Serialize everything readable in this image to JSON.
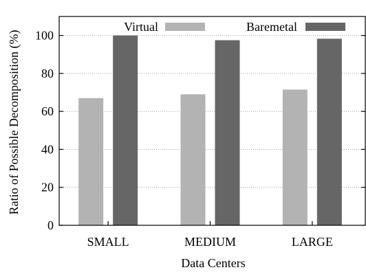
{
  "chart_data": {
    "type": "bar",
    "title": "",
    "xlabel": "Data Centers",
    "ylabel": "Ratio of Possible Decomposition (%)",
    "categories": [
      "SMALL",
      "MEDIUM",
      "LARGE"
    ],
    "series": [
      {
        "name": "Virtual",
        "color": "#b3b3b3",
        "values": [
          67,
          69,
          71.5
        ]
      },
      {
        "name": "Baremetal",
        "color": "#666666",
        "values": [
          100,
          97.5,
          98.3
        ]
      }
    ],
    "ylim": [
      0,
      110
    ],
    "yticks": [
      0,
      20,
      40,
      60,
      80,
      100
    ],
    "grid": true,
    "legend_position": "top"
  }
}
